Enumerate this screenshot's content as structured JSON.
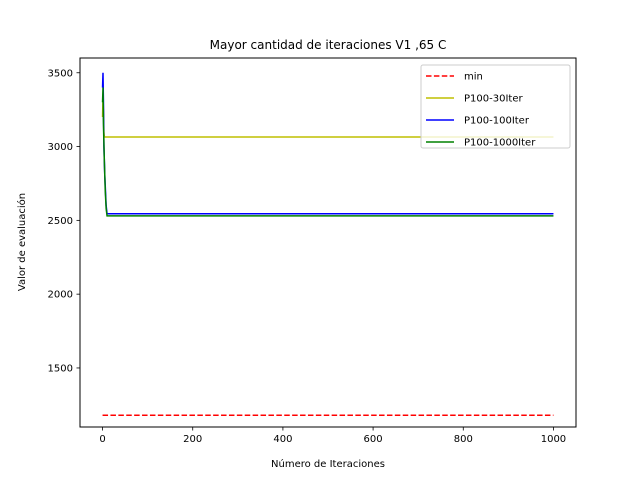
{
  "chart_data": {
    "type": "line",
    "title": "Mayor cantidad de iteraciones V1 ,65 C",
    "xlabel": "Número de Iteraciones",
    "ylabel": "Valor de evaluación",
    "xlim": [
      -50,
      1050
    ],
    "ylim": [
      1100,
      3600
    ],
    "xticks": [
      0,
      200,
      400,
      600,
      800,
      1000
    ],
    "yticks": [
      1500,
      2000,
      2500,
      3000,
      3500
    ],
    "grid": false,
    "legend_position": "upper right",
    "series": [
      {
        "name": "min",
        "color": "#ff0000",
        "style": "dashed",
        "x": [
          0,
          1000
        ],
        "y": [
          1180,
          1180
        ]
      },
      {
        "name": "P100-30Iter",
        "color": "#bfbf00",
        "style": "solid",
        "x": [
          0,
          1,
          2,
          3,
          4,
          1000
        ],
        "y": [
          3200,
          3340,
          3250,
          3100,
          3065,
          3065
        ]
      },
      {
        "name": "P100-100Iter",
        "color": "#0000ff",
        "style": "solid",
        "x": [
          0,
          1,
          2,
          3,
          5,
          8,
          10,
          1000
        ],
        "y": [
          3400,
          3500,
          3300,
          3000,
          2800,
          2600,
          2545,
          2545
        ]
      },
      {
        "name": "P100-1000Iter",
        "color": "#008000",
        "style": "solid",
        "x": [
          0,
          1,
          2,
          4,
          6,
          8,
          10,
          1000
        ],
        "y": [
          3300,
          3400,
          3150,
          2900,
          2700,
          2580,
          2530,
          2530
        ]
      }
    ]
  }
}
